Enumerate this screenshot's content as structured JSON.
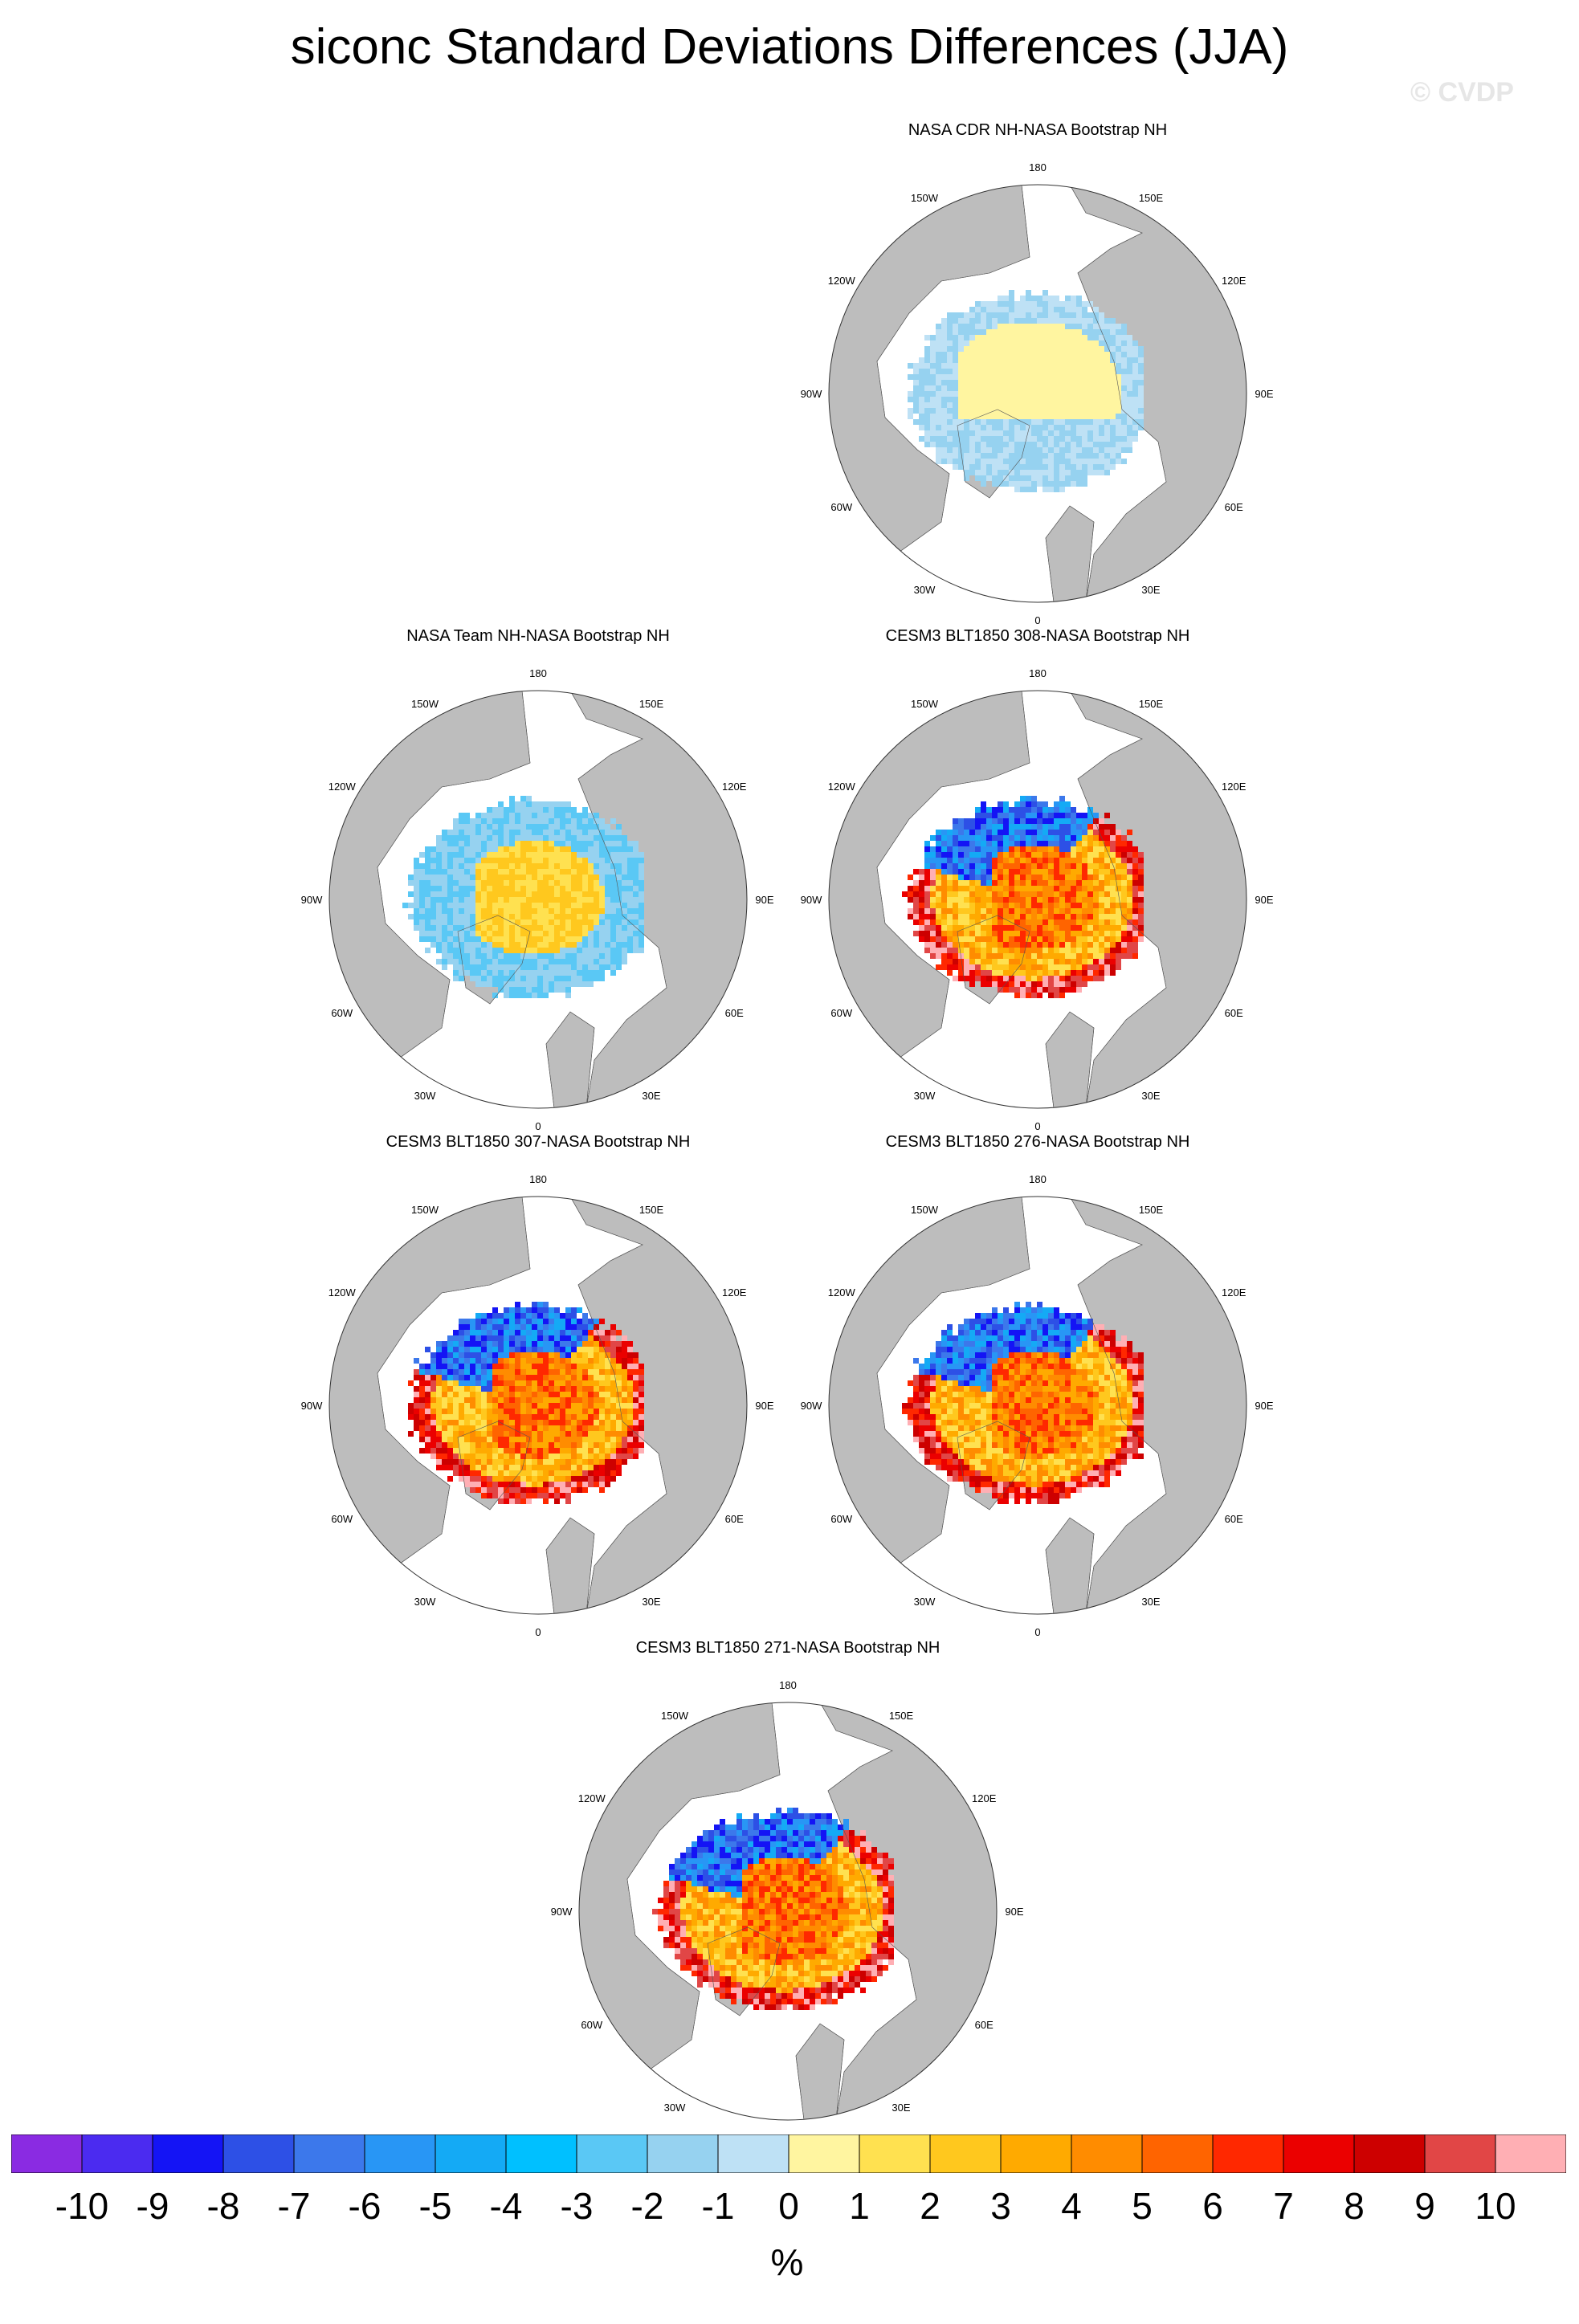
{
  "title": "siconc Standard Deviations Differences (JJA)",
  "watermark": "© CVDP",
  "units": "%",
  "colorbar": {
    "labels": [
      "-10",
      "-9",
      "-8",
      "-7",
      "-6",
      "-5",
      "-4",
      "-3",
      "-2",
      "-1",
      "0",
      "1",
      "2",
      "3",
      "4",
      "5",
      "6",
      "7",
      "8",
      "9",
      "10"
    ],
    "colors": [
      "#8a2be2",
      "#4b2bf0",
      "#1414f5",
      "#2d50e6",
      "#3c78eb",
      "#2896f5",
      "#14aaf5",
      "#00c0ff",
      "#5ac8f5",
      "#96d2f0",
      "#bee1f5",
      "#fff5a0",
      "#ffe150",
      "#ffc81e",
      "#ffaa00",
      "#ff8c00",
      "#ff6400",
      "#ff2800",
      "#eb0000",
      "#cd0000",
      "#e14646",
      "#ffafb4"
    ]
  },
  "lon_labels": [
    "180",
    "150E",
    "120E",
    "90E",
    "60E",
    "30E",
    "0",
    "30W",
    "60W",
    "90W",
    "120W",
    "150W"
  ],
  "chart_data": [
    {
      "type": "heatmap",
      "title": "NASA CDR NH-NASA Bootstrap NH",
      "projection": "north polar stereographic",
      "variable": "siconc std dev difference",
      "units": "%",
      "dominant_range": [
        -2,
        1
      ],
      "pattern": "weak"
    },
    {
      "type": "heatmap",
      "title": "NASA Team NH-NASA Bootstrap NH",
      "projection": "north polar stereographic",
      "variable": "siconc std dev difference",
      "units": "%",
      "dominant_range": [
        -2,
        3
      ],
      "pattern": "moderate"
    },
    {
      "type": "heatmap",
      "title": "CESM3 BLT1850 308-NASA Bootstrap NH",
      "projection": "north polar stereographic",
      "variable": "siconc std dev difference",
      "units": "%",
      "dominant_range": [
        -10,
        10
      ],
      "pattern": "strong"
    },
    {
      "type": "heatmap",
      "title": "CESM3 BLT1850 307-NASA Bootstrap NH",
      "projection": "north polar stereographic",
      "variable": "siconc std dev difference",
      "units": "%",
      "dominant_range": [
        -10,
        10
      ],
      "pattern": "strong"
    },
    {
      "type": "heatmap",
      "title": "CESM3 BLT1850 276-NASA Bootstrap NH",
      "projection": "north polar stereographic",
      "variable": "siconc std dev difference",
      "units": "%",
      "dominant_range": [
        -10,
        10
      ],
      "pattern": "strong"
    },
    {
      "type": "heatmap",
      "title": "CESM3 BLT1850 271-NASA Bootstrap NH",
      "projection": "north polar stereographic",
      "variable": "siconc std dev difference",
      "units": "%",
      "dominant_range": [
        -10,
        10
      ],
      "pattern": "strong"
    }
  ]
}
